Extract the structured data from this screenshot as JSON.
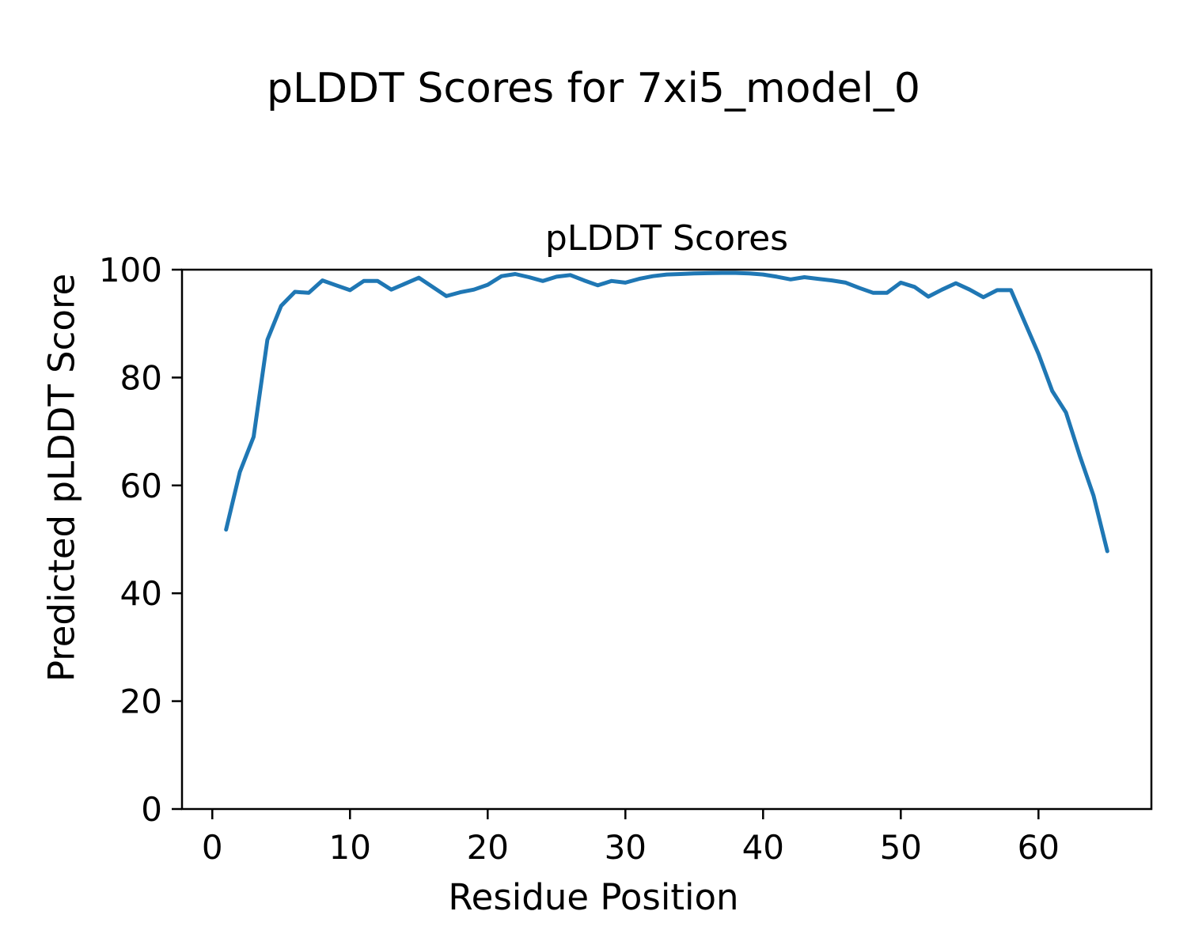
{
  "figure": {
    "suptitle": "pLDDT Scores for 7xi5_model_0",
    "background_color": "#ffffff",
    "text_color": "#000000"
  },
  "chart_data": {
    "type": "line",
    "title": "pLDDT Scores",
    "xlabel": "Residue Position",
    "ylabel": "Predicted pLDDT Score",
    "line_color": "#1f77b4",
    "grid": false,
    "legend": "none",
    "xlim": [
      -2.2,
      68.2
    ],
    "ylim": [
      0,
      100
    ],
    "xticks": [
      0,
      10,
      20,
      30,
      40,
      50,
      60
    ],
    "yticks": [
      0,
      20,
      40,
      60,
      80,
      100
    ],
    "x": [
      1,
      2,
      3,
      4,
      5,
      6,
      7,
      8,
      9,
      10,
      11,
      12,
      13,
      14,
      15,
      16,
      17,
      18,
      19,
      20,
      21,
      22,
      23,
      24,
      25,
      26,
      27,
      28,
      29,
      30,
      31,
      32,
      33,
      34,
      35,
      36,
      37,
      38,
      39,
      40,
      41,
      42,
      43,
      44,
      45,
      46,
      47,
      48,
      49,
      50,
      51,
      52,
      53,
      54,
      55,
      56,
      57,
      58,
      59,
      60,
      61,
      62,
      63,
      64,
      65
    ],
    "values": [
      51.8,
      62.5,
      69.0,
      87.0,
      93.3,
      95.9,
      95.7,
      98.0,
      97.1,
      96.2,
      97.9,
      97.9,
      96.3,
      97.4,
      98.5,
      96.8,
      95.1,
      95.8,
      96.3,
      97.2,
      98.8,
      99.2,
      98.6,
      97.9,
      98.7,
      99.0,
      98.0,
      97.1,
      97.9,
      97.6,
      98.3,
      98.8,
      99.1,
      99.2,
      99.3,
      99.35,
      99.4,
      99.4,
      99.3,
      99.1,
      98.7,
      98.2,
      98.6,
      98.3,
      98.0,
      97.6,
      96.6,
      95.7,
      95.7,
      97.6,
      96.8,
      95.0,
      96.3,
      97.5,
      96.3,
      94.9,
      96.2,
      96.2,
      90.3,
      84.4,
      77.5,
      73.5,
      65.5,
      58.1,
      47.8
    ]
  }
}
